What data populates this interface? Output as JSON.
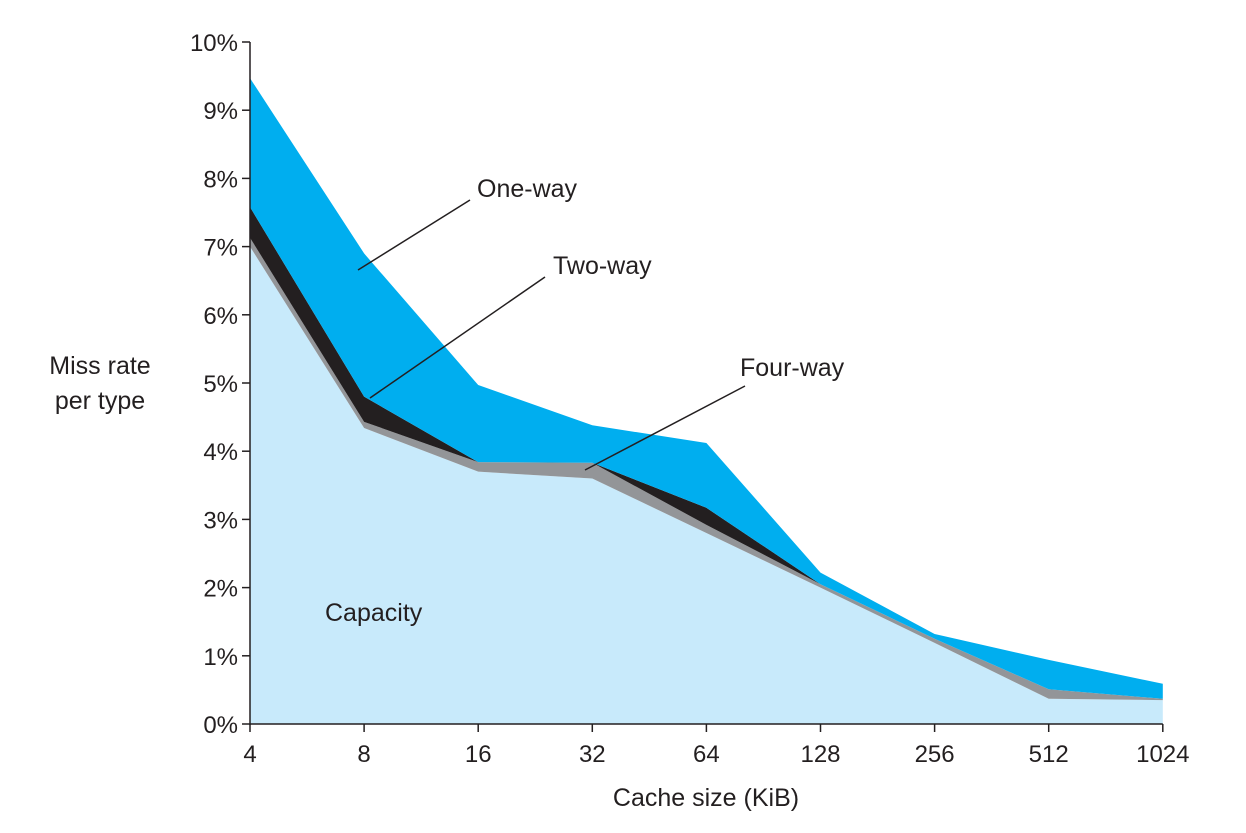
{
  "chart_data": {
    "type": "area",
    "stacked": true,
    "xlabel": "Cache size (KiB)",
    "ylabel_lines": [
      "Miss rate",
      "per type"
    ],
    "categories": [
      "4",
      "8",
      "16",
      "32",
      "64",
      "128",
      "256",
      "512",
      "1024"
    ],
    "yticks": [
      "0%",
      "1%",
      "2%",
      "3%",
      "4%",
      "5%",
      "6%",
      "7%",
      "8%",
      "9%",
      "10%"
    ],
    "ylim": [
      0,
      10
    ],
    "grid": false,
    "legend": "inline annotations",
    "series": [
      {
        "name": "Capacity",
        "color": "#c8eafb",
        "values": [
          7.0,
          4.34,
          3.7,
          3.6,
          2.8,
          2.0,
          1.19,
          0.37,
          0.35
        ]
      },
      {
        "name": "Four-way",
        "color": "#939598",
        "values": [
          0.13,
          0.09,
          0.14,
          0.23,
          0.12,
          0.05,
          0.06,
          0.14,
          0.02
        ]
      },
      {
        "name": "Two-way",
        "color": "#231f20",
        "values": [
          0.45,
          0.37,
          0.0,
          0.0,
          0.25,
          0.0,
          0.0,
          0.0,
          0.0
        ]
      },
      {
        "name": "One-way",
        "color": "#00aeef",
        "values": [
          1.89,
          2.1,
          1.13,
          0.55,
          0.95,
          0.17,
          0.07,
          0.43,
          0.22
        ]
      }
    ]
  }
}
